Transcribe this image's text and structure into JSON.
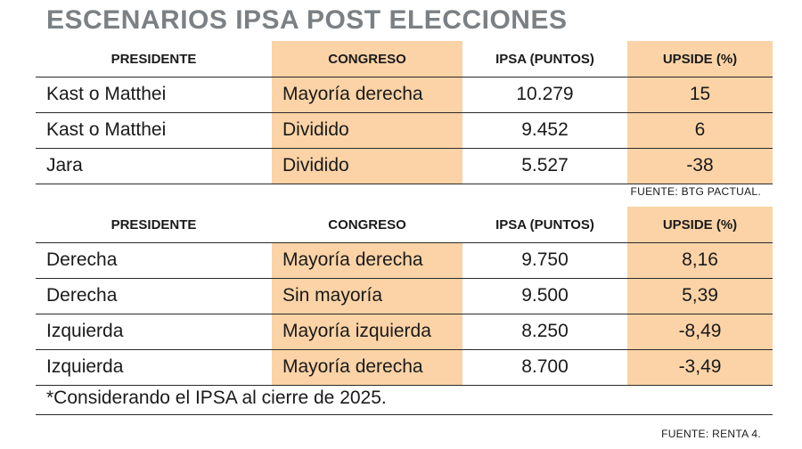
{
  "title": "ESCENARIOS IPSA POST ELECCIONES",
  "headers": [
    "PRESIDENTE",
    "CONGRESO",
    "IPSA (PUNTOS)",
    "UPSIDE (%)"
  ],
  "table1": {
    "rows": [
      [
        "Kast o Matthei",
        "Mayoría derecha",
        "10.279",
        "15"
      ],
      [
        "Kast o Matthei",
        "Dividido",
        "9.452",
        "6"
      ],
      [
        "Jara",
        "Dividido",
        "5.527",
        "-38"
      ]
    ],
    "source": "FUENTE: BTG PACTUAL."
  },
  "table2": {
    "rows": [
      [
        "Derecha",
        "Mayoría derecha",
        "9.750",
        "8,16"
      ],
      [
        "Derecha",
        "Sin mayoría",
        "9.500",
        "5,39"
      ],
      [
        "Izquierda",
        "Mayoría izquierda",
        "8.250",
        "-8,49"
      ],
      [
        "Izquierda",
        "Mayoría derecha",
        "8.700",
        "-3,49"
      ]
    ],
    "note": "*Considerando el IPSA al cierre de 2025.",
    "source": "FUENTE: RENTA 4."
  },
  "colors": {
    "accent_column": "#fbd3a6",
    "title": "#7b8084"
  }
}
